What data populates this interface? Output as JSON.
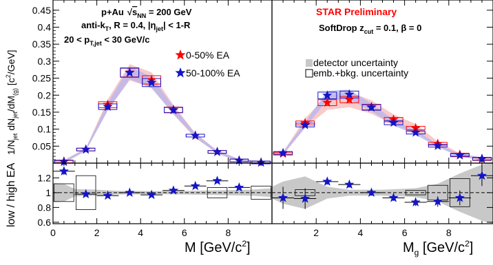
{
  "chart_data": [
    {
      "type": "line",
      "panel": "top-left",
      "header_lines": [
        "p+Au",
        "anti-k",
        "20 < p"
      ],
      "header_spans": {
        "sqrt_s": "√",
        "s_nn": "s",
        "nn_sub": "NN",
        "energy": " = 200 GeV",
        "kt_sub": "T",
        "radius": ", R = 0.4, |η",
        "eta_sub": "jet",
        "eta_range": "| < 1-R",
        "pt_sub": "T,jet",
        "pt_range": " < 30 GeV/c"
      },
      "ylabel": "1/N",
      "ylabel_parts": [
        "1/N",
        "jet",
        " dN",
        "jet",
        "/dM",
        "(g)",
        " [c",
        "2",
        "/GeV]"
      ],
      "xlim": [
        0,
        10
      ],
      "ylim": [
        0,
        0.48
      ],
      "yticks": [
        "0.05",
        "0.1",
        "0.15",
        "0.2",
        "0.25",
        "0.3",
        "0.35",
        "0.4",
        "0.45"
      ],
      "legend": [
        {
          "name": "0-50% EA",
          "color": "#ff0000"
        },
        {
          "name": "50-100% EA",
          "color": "#1414c8"
        }
      ],
      "x": [
        0.5,
        1.5,
        2.5,
        3.5,
        4.5,
        5.5,
        6.5,
        7.5,
        8.5,
        9.5
      ],
      "series": [
        {
          "name": "0-50% EA",
          "values": [
            0.005,
            0.04,
            0.172,
            0.267,
            0.245,
            0.157,
            0.081,
            0.033,
            0.008,
            0.002
          ]
        },
        {
          "name": "50-100% EA",
          "values": [
            0.004,
            0.04,
            0.166,
            0.266,
            0.237,
            0.156,
            0.081,
            0.033,
            0.008,
            0.002
          ]
        }
      ]
    },
    {
      "type": "line",
      "panel": "top-right",
      "title": "STAR Preliminary",
      "annotation_parts": [
        "SoftDrop z",
        "cut",
        " = 0.1, β = 0"
      ],
      "xlim": [
        0,
        10
      ],
      "ylim": [
        0,
        0.48
      ],
      "legend": [
        {
          "name": "detector uncertainty"
        },
        {
          "name": "emb.+bkg. uncertainty"
        }
      ],
      "x": [
        0.5,
        1.5,
        2.5,
        3.5,
        4.5,
        5.5,
        6.5,
        7.5,
        8.5,
        9.5
      ],
      "series": [
        {
          "name": "0-50% EA",
          "values": [
            0.028,
            0.118,
            0.178,
            0.187,
            0.165,
            0.128,
            0.103,
            0.057,
            0.025,
            0.012
          ]
        },
        {
          "name": "50-100% EA",
          "values": [
            0.03,
            0.112,
            0.199,
            0.202,
            0.164,
            0.119,
            0.09,
            0.051,
            0.023,
            0.013
          ]
        }
      ]
    },
    {
      "type": "scatter",
      "panel": "bottom-left",
      "ylabel": "low / high EA",
      "xlabel": "M [GeV/c",
      "xlabel_sup": "2",
      "xlabel_end": "]",
      "xticks": [
        "0",
        "2",
        "4",
        "6",
        "8"
      ],
      "yticks": [
        "0.6",
        "0.8",
        "1",
        "1.2"
      ],
      "xlim": [
        0,
        10
      ],
      "ylim": [
        0.58,
        1.4
      ],
      "x": [
        0.5,
        1.5,
        2.5,
        3.5,
        4.5,
        5.5,
        6.5,
        7.5,
        8.5
      ],
      "values": [
        1.29,
        0.98,
        0.96,
        1.0,
        0.97,
        1.03,
        1.09,
        1.16,
        1.07
      ]
    },
    {
      "type": "scatter",
      "panel": "bottom-right",
      "xlabel": "M",
      "xlabel_sub": "g",
      "xlabel_rest": " [GeV/c",
      "xlabel_sup": "2",
      "xlabel_end": "]",
      "xticks": [
        "2",
        "4",
        "6",
        "8"
      ],
      "xlim": [
        0,
        10
      ],
      "ylim": [
        0.58,
        1.4
      ],
      "x": [
        0.5,
        1.5,
        2.5,
        3.5,
        4.5,
        5.5,
        6.5,
        7.5,
        8.5,
        9.5
      ],
      "values": [
        0.93,
        0.92,
        1.15,
        1.11,
        1.0,
        0.93,
        0.87,
        0.88,
        0.93,
        1.23
      ]
    }
  ]
}
